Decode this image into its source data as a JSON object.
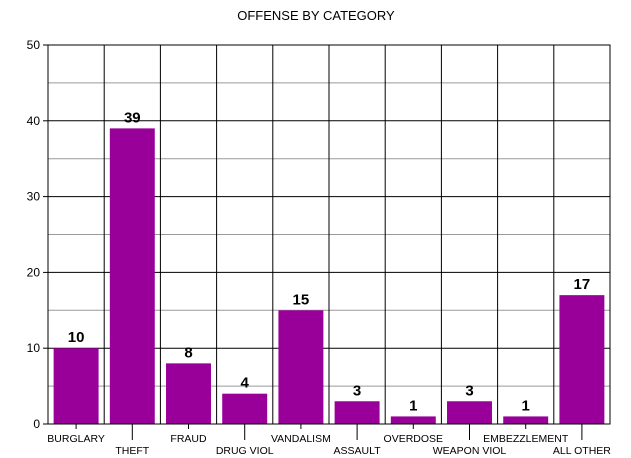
{
  "chart_data": {
    "type": "bar",
    "title": "OFFENSE BY CATEGORY",
    "xlabel": "",
    "ylabel": "",
    "categories": [
      "BURGLARY",
      "THEFT",
      "FRAUD",
      "DRUG VIOL",
      "VANDALISM",
      "ASSAULT",
      "OVERDOSE",
      "WEAPON VIOL",
      "EMBEZZLEMENT",
      "ALL OTHER"
    ],
    "values": [
      10,
      39,
      8,
      4,
      15,
      3,
      1,
      3,
      1,
      17
    ],
    "ylim": [
      0,
      50
    ],
    "yticks": [
      0,
      10,
      20,
      30,
      40,
      50
    ],
    "grid": true,
    "data_labels": true,
    "bar_color": "#990099"
  }
}
